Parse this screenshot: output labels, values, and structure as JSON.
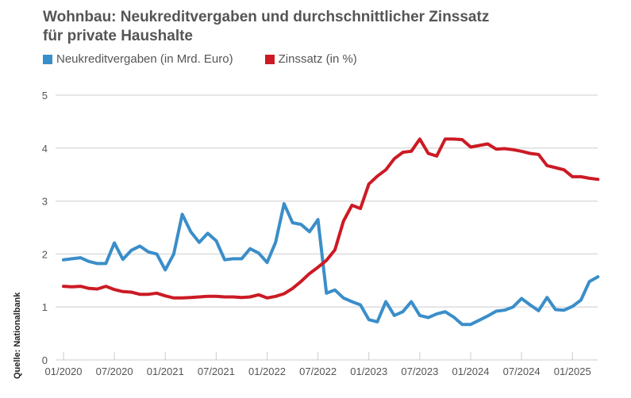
{
  "header": {
    "title_line1": "Wohnbau: Neukreditvergaben und durchschnittlicher Zinssatz",
    "title_line2": "für private Haushalte"
  },
  "legend": [
    {
      "label": "Neukreditvergaben (in Mrd. Euro)",
      "color": "#3a8ec9"
    },
    {
      "label": "Zinssatz (in %)",
      "color": "#cc1a24"
    }
  ],
  "source": "Quelle: Nationalbank",
  "chart_data": {
    "type": "line",
    "title": "Wohnbau: Neukreditvergaben und durchschnittlicher Zinssatz für private Haushalte",
    "xlabel": "",
    "ylabel": "",
    "ylim": [
      0,
      5
    ],
    "yticks": [
      "0",
      "1",
      "2",
      "3",
      "4",
      "5"
    ],
    "xticks": [
      "01/2020",
      "07/2020",
      "01/2021",
      "07/2021",
      "01/2022",
      "07/2022",
      "01/2023",
      "07/2023",
      "01/2024",
      "07/2024",
      "01/2025"
    ],
    "grid": true,
    "legend_position": "top-left",
    "x_start": "01/2020",
    "x_end": "04/2025",
    "x_step": "monthly",
    "series": [
      {
        "name": "Neukreditvergaben (in Mrd. Euro)",
        "color": "#3a8ec9",
        "values": [
          1.89,
          1.91,
          1.93,
          1.86,
          1.82,
          1.82,
          2.21,
          1.9,
          2.07,
          2.15,
          2.04,
          2.0,
          1.7,
          2.0,
          2.75,
          2.42,
          2.22,
          2.39,
          2.25,
          1.89,
          1.91,
          1.91,
          2.1,
          2.02,
          1.84,
          2.22,
          2.95,
          2.59,
          2.56,
          2.42,
          2.65,
          1.26,
          1.32,
          1.17,
          1.1,
          1.04,
          0.76,
          0.72,
          1.1,
          0.84,
          0.91,
          1.1,
          0.84,
          0.8,
          0.87,
          0.91,
          0.81,
          0.67,
          0.67,
          0.75,
          0.83,
          0.92,
          0.94,
          1.0,
          1.16,
          1.04,
          0.93,
          1.18,
          0.95,
          0.94,
          1.01,
          1.13,
          1.48,
          1.57
        ]
      },
      {
        "name": "Zinssatz (in %)",
        "color": "#cc1a24",
        "values": [
          1.39,
          1.38,
          1.39,
          1.35,
          1.34,
          1.39,
          1.33,
          1.29,
          1.28,
          1.24,
          1.24,
          1.26,
          1.21,
          1.17,
          1.17,
          1.18,
          1.19,
          1.2,
          1.2,
          1.19,
          1.19,
          1.18,
          1.19,
          1.23,
          1.17,
          1.2,
          1.25,
          1.35,
          1.48,
          1.63,
          1.75,
          1.88,
          2.08,
          2.62,
          2.92,
          2.86,
          3.32,
          3.47,
          3.59,
          3.8,
          3.92,
          3.94,
          4.17,
          3.9,
          3.85,
          4.17,
          4.17,
          4.16,
          4.02,
          4.05,
          4.08,
          3.98,
          3.99,
          3.97,
          3.94,
          3.9,
          3.88,
          3.67,
          3.63,
          3.59,
          3.46,
          3.46,
          3.43,
          3.41
        ]
      }
    ]
  }
}
